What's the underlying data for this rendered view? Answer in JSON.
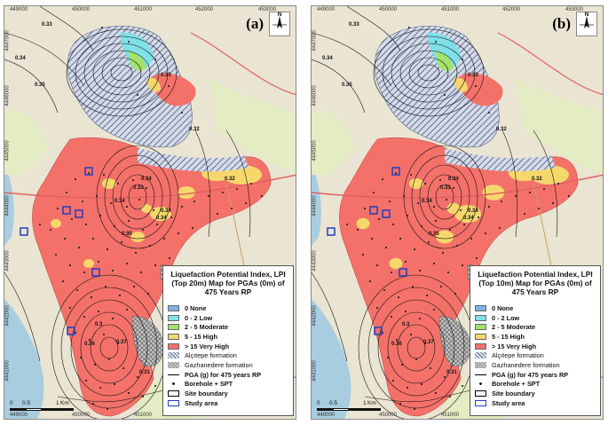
{
  "panels": [
    {
      "id": "a",
      "label": "(a)",
      "title": "Liquefaction Potential Index, LPI (Top 20m) Map for PGAs (0m) of 475 Years RP"
    },
    {
      "id": "b",
      "label": "(b)",
      "title": "Liquefaction Potential Index, LPI (Top 10m) Map for PGAs (0m) of 475 Years RP"
    }
  ],
  "x_ticks": [
    "449000",
    "450000",
    "451000",
    "452000",
    "453000"
  ],
  "y_ticks": [
    "4447000",
    "4446000",
    "4445000",
    "4444000",
    "4443000",
    "4442000",
    "4441000"
  ],
  "north_label": "N",
  "scale": {
    "zero": "0",
    "half": "0.5",
    "one": "1",
    "unit": "Km"
  },
  "contour_labels": [
    "0.33",
    "0.34",
    "0.35",
    "0.33",
    "0.32",
    "0.34",
    "0.34",
    "0.33",
    "0.34",
    "0.32",
    "0.34",
    "0.35",
    "0.36",
    "0.37",
    "0.31",
    "0.3"
  ],
  "legend": {
    "items": [
      {
        "label": "0 None",
        "color": "#7fb2e8",
        "kind": "fill"
      },
      {
        "label": "0 - 2 Low",
        "color": "#7fe0e8",
        "kind": "fill"
      },
      {
        "label": "2 - 5 Moderate",
        "color": "#a3e36a",
        "kind": "fill"
      },
      {
        "label": "5 - 15 High",
        "color": "#f5d76b",
        "kind": "fill"
      },
      {
        "label": "> 15 Very High",
        "color": "#f4716a",
        "kind": "fill"
      },
      {
        "label": "Alçıtepe formation",
        "color": "#6f7f9f",
        "kind": "hatch"
      },
      {
        "label": "Gazhanedere formation",
        "color": "#8f8f8f",
        "kind": "cross"
      },
      {
        "label": "PGA (g) for 475 years RP",
        "color": "#000000",
        "kind": "line"
      },
      {
        "label": "Borehole + SPT",
        "color": "#000000",
        "kind": "dot"
      },
      {
        "label": "Site boundary",
        "color": "#000000",
        "kind": "box"
      },
      {
        "label": "Study area",
        "color": "#1f3fbf",
        "kind": "bluebox"
      }
    ]
  },
  "colors": {
    "very_high": "#f4716a",
    "high": "#f5d76b",
    "moderate": "#a3e36a",
    "low": "#7fe0e8",
    "none": "#7fb2e8",
    "land": "#eae4d2",
    "sea": "#a8cde0",
    "study_area": "#1f3fbf"
  }
}
